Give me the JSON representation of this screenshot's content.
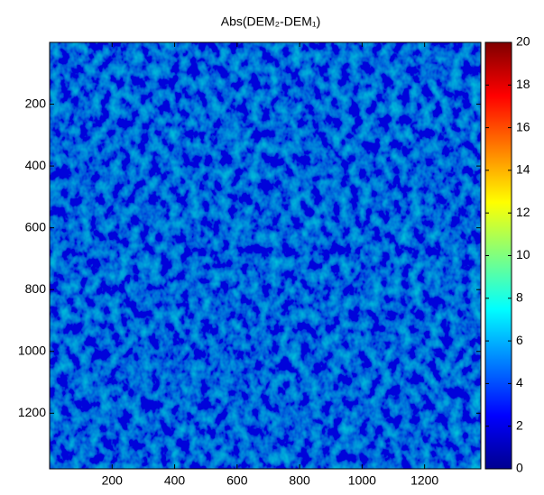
{
  "chart_data": {
    "type": "heatmap",
    "title": "Abs(DEM₂-DEM₁)",
    "xlim": [
      0,
      1380
    ],
    "ylim": [
      0,
      1380
    ],
    "y_reversed": true,
    "xticks": [
      200,
      400,
      600,
      800,
      1000,
      1200
    ],
    "yticks": [
      200,
      400,
      600,
      800,
      1000,
      1200
    ],
    "colormap": "jet",
    "clim": [
      0,
      20
    ],
    "cticks": [
      0,
      2,
      4,
      6,
      8,
      10,
      12,
      14,
      16,
      18,
      20
    ]
  }
}
